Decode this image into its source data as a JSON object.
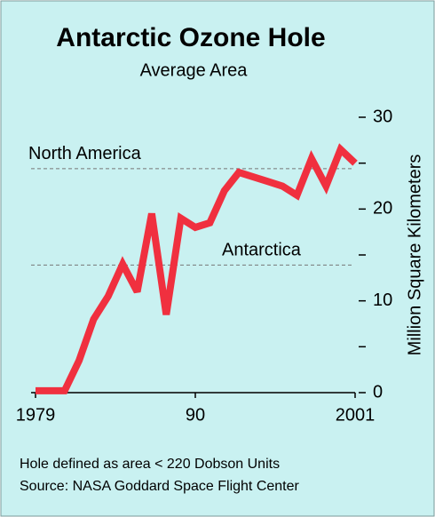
{
  "chart_data": {
    "type": "line",
    "title": "Antarctic Ozone Hole",
    "subtitle": "Average Area",
    "y_label": "Million Square Kilometers",
    "x": [
      1979,
      1980,
      1981,
      1982,
      1983,
      1984,
      1985,
      1986,
      1987,
      1988,
      1989,
      1990,
      1991,
      1992,
      1993,
      1994,
      1995,
      1996,
      1997,
      1998,
      1999,
      2000,
      2001
    ],
    "series": [
      {
        "name": "Average Area",
        "color": "#f0303f",
        "values": [
          0.2,
          0.2,
          0.2,
          3.5,
          8,
          10.5,
          14,
          11,
          19.5,
          8.5,
          19,
          18,
          18.5,
          22,
          24,
          23.5,
          23,
          22.5,
          21.5,
          25.5,
          22.5,
          26.5,
          25
        ]
      }
    ],
    "xlim": [
      1979,
      2001
    ],
    "xticks": [
      1979,
      {
        "value": 1990,
        "label": "90"
      },
      2001
    ],
    "ylim": [
      0,
      30
    ],
    "yticks": [
      0,
      10,
      20,
      30
    ],
    "yticks_minor": [
      5,
      15,
      25
    ],
    "reference_lines": [
      {
        "label": "North America",
        "value": 24.4
      },
      {
        "label": "Antarctica",
        "value": 13.9
      }
    ],
    "footnotes": [
      "Hole defined as area < 220 Dobson Units",
      "Source:  NASA Goddard Space Flight Center"
    ]
  }
}
